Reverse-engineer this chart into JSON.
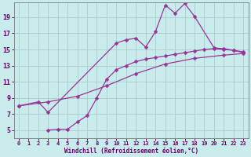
{
  "bg_color": "#c8ecec",
  "line_color": "#993399",
  "grid_color": "#aacccc",
  "xlabel": "Windchill (Refroidissement éolien,°C)",
  "xlabel_color": "#660066",
  "tick_color": "#660066",
  "xmin": -0.5,
  "xmax": 23.5,
  "ymin": 4.0,
  "ymax": 20.8,
  "yticks": [
    5,
    7,
    9,
    11,
    13,
    15,
    17,
    19
  ],
  "xticks": [
    0,
    1,
    2,
    3,
    4,
    5,
    6,
    7,
    8,
    9,
    10,
    11,
    12,
    13,
    14,
    15,
    16,
    17,
    18,
    19,
    20,
    21,
    22,
    23
  ],
  "lines": [
    {
      "x": [
        0,
        2,
        3,
        10,
        11,
        12,
        13,
        14,
        15,
        16,
        17,
        18,
        20,
        21,
        22,
        23
      ],
      "y": [
        8.0,
        8.5,
        7.2,
        15.8,
        16.2,
        16.4,
        15.3,
        17.2,
        20.5,
        19.5,
        20.7,
        19.1,
        15.2,
        15.1,
        14.9,
        14.7
      ]
    },
    {
      "x": [
        0,
        3,
        6,
        9,
        12,
        15,
        18,
        21,
        23
      ],
      "y": [
        8.0,
        8.5,
        9.2,
        10.5,
        12.0,
        13.2,
        13.9,
        14.3,
        14.5
      ]
    },
    {
      "x": [
        3,
        4,
        5,
        6,
        7,
        8,
        9,
        10,
        11,
        12,
        13,
        14,
        15,
        16,
        17,
        18,
        19,
        20,
        21,
        22,
        23
      ],
      "y": [
        5.0,
        5.1,
        5.1,
        6.0,
        6.8,
        9.0,
        11.3,
        12.5,
        13.0,
        13.5,
        13.8,
        14.0,
        14.2,
        14.4,
        14.6,
        14.8,
        15.0,
        15.1,
        15.0,
        14.9,
        14.6
      ]
    }
  ]
}
